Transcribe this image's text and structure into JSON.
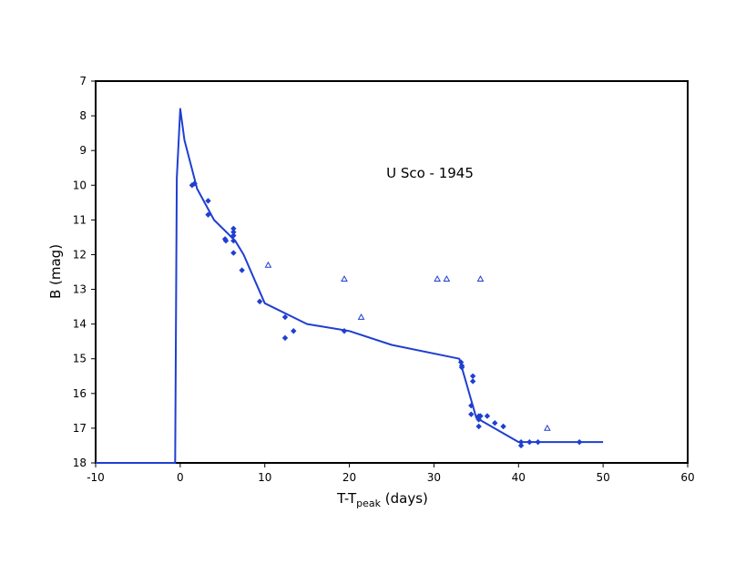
{
  "chart_data": {
    "type": "scatter",
    "annotation": "U Sco - 1945",
    "xlabel_main": "T-T",
    "xlabel_sub": "peak",
    "xlabel_tail": " (days)",
    "ylabel": "B (mag)",
    "xlim": [
      -10,
      60
    ],
    "ylim": [
      7,
      18
    ],
    "y_inverted": true,
    "grid": false,
    "legend": "none",
    "x_ticks": [
      "-10",
      "0",
      "10",
      "20",
      "30",
      "40",
      "50",
      "60"
    ],
    "y_ticks": [
      "7",
      "8",
      "9",
      "10",
      "11",
      "12",
      "13",
      "14",
      "15",
      "16",
      "17",
      "18"
    ],
    "colors": {
      "series": "#1f3fd1",
      "frame": "#000000"
    },
    "series": [
      {
        "marker": "diamond-filled",
        "points": [
          [
            1.4,
            10.0
          ],
          [
            1.7,
            9.95
          ],
          [
            3.3,
            10.45
          ],
          [
            3.3,
            10.85
          ],
          [
            5.3,
            11.55
          ],
          [
            5.4,
            11.6
          ],
          [
            6.3,
            11.25
          ],
          [
            6.3,
            11.35
          ],
          [
            6.3,
            11.45
          ],
          [
            6.3,
            11.6
          ],
          [
            6.3,
            11.95
          ],
          [
            7.3,
            12.45
          ],
          [
            9.4,
            13.35
          ],
          [
            12.4,
            13.8
          ],
          [
            12.4,
            14.4
          ],
          [
            13.4,
            14.2
          ],
          [
            19.4,
            14.2
          ],
          [
            33.2,
            15.1
          ],
          [
            33.3,
            15.2
          ],
          [
            33.3,
            15.25
          ],
          [
            34.4,
            16.35
          ],
          [
            34.4,
            16.6
          ],
          [
            34.6,
            15.5
          ],
          [
            34.6,
            15.65
          ],
          [
            35.3,
            16.65
          ],
          [
            35.3,
            16.75
          ],
          [
            35.3,
            16.95
          ],
          [
            35.5,
            16.65
          ],
          [
            36.3,
            16.65
          ],
          [
            37.2,
            16.85
          ],
          [
            38.2,
            16.95
          ],
          [
            40.3,
            17.4
          ],
          [
            40.3,
            17.5
          ],
          [
            41.3,
            17.4
          ],
          [
            42.3,
            17.4
          ],
          [
            47.2,
            17.4
          ]
        ]
      },
      {
        "marker": "triangle-open",
        "points": [
          [
            10.4,
            12.3
          ],
          [
            19.4,
            12.7
          ],
          [
            21.4,
            13.8
          ],
          [
            30.4,
            12.7
          ],
          [
            31.5,
            12.7
          ],
          [
            35.5,
            12.7
          ],
          [
            43.4,
            17.0
          ]
        ]
      },
      {
        "marker": "line",
        "points": [
          [
            -11,
            18.0
          ],
          [
            -0.6,
            18.0
          ],
          [
            -0.4,
            9.8
          ],
          [
            0.0,
            7.8
          ],
          [
            0.5,
            8.7
          ],
          [
            2.0,
            10.1
          ],
          [
            4.0,
            11.0
          ],
          [
            6.5,
            11.6
          ],
          [
            7.5,
            12.0
          ],
          [
            10.0,
            13.4
          ],
          [
            15.0,
            14.0
          ],
          [
            20.0,
            14.2
          ],
          [
            25.0,
            14.6
          ],
          [
            33.0,
            15.0
          ],
          [
            35.0,
            16.7
          ],
          [
            40.0,
            17.4
          ],
          [
            50.0,
            17.4
          ]
        ]
      }
    ]
  }
}
